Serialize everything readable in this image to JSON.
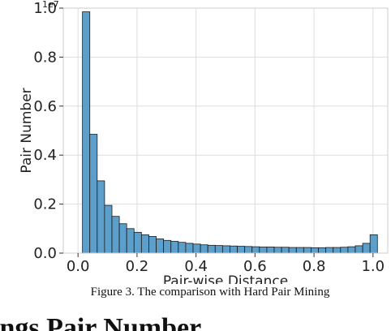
{
  "chart_data": {
    "type": "bar",
    "xlabel": "Pair-wise Distance",
    "ylabel": "Pair Number",
    "y_scale_label": "1e7",
    "xlim": [
      -0.05,
      1.05
    ],
    "ylim": [
      0,
      1.0
    ],
    "grid": true,
    "x_ticks": [
      "0.0",
      "0.2",
      "0.4",
      "0.6",
      "0.8",
      "1.0"
    ],
    "y_ticks": [
      "0.0",
      "0.2",
      "0.4",
      "0.6",
      "0.8",
      "1.0"
    ],
    "bin_edges": [
      0.015,
      0.04,
      0.065,
      0.09,
      0.115,
      0.14,
      0.165,
      0.19,
      0.215,
      0.24,
      0.265,
      0.29,
      0.315,
      0.34,
      0.365,
      0.39,
      0.415,
      0.44,
      0.465,
      0.49,
      0.515,
      0.54,
      0.565,
      0.59,
      0.615,
      0.64,
      0.665,
      0.69,
      0.715,
      0.74,
      0.765,
      0.79,
      0.815,
      0.84,
      0.865,
      0.89,
      0.915,
      0.94,
      0.965,
      0.99,
      1.015
    ],
    "values": [
      0.985,
      0.485,
      0.295,
      0.195,
      0.15,
      0.12,
      0.1,
      0.085,
      0.075,
      0.068,
      0.058,
      0.052,
      0.048,
      0.044,
      0.04,
      0.037,
      0.034,
      0.032,
      0.031,
      0.03,
      0.029,
      0.028,
      0.027,
      0.026,
      0.025,
      0.025,
      0.024,
      0.024,
      0.023,
      0.023,
      0.023,
      0.022,
      0.022,
      0.023,
      0.023,
      0.024,
      0.026,
      0.03,
      0.04,
      0.075
    ],
    "bar_color": "#5d9fcb",
    "edge_color": "#1b1b1b"
  },
  "caption": "Figure 3. The comparison with Hard Pair Mining",
  "heading_fragment": "ings Pair Number"
}
